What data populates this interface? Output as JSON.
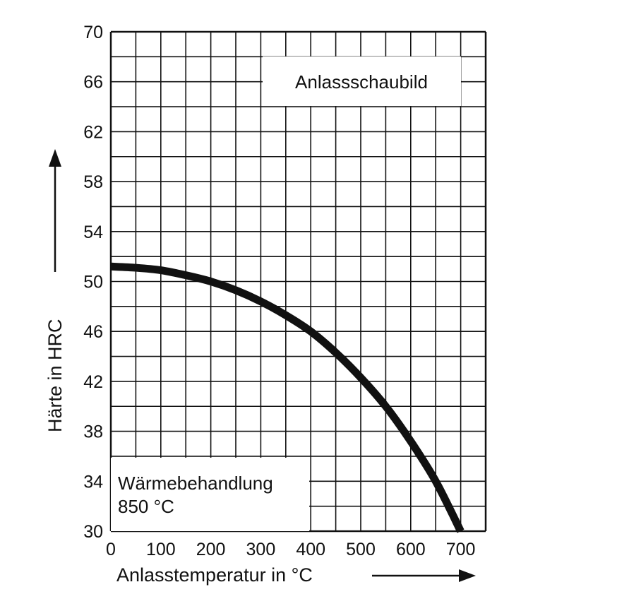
{
  "chart_data": {
    "type": "line",
    "title": "",
    "xlabel": "Anlasstemperatur in °C",
    "ylabel": "Härte in HRC",
    "xlim": [
      0,
      750
    ],
    "ylim": [
      30,
      70
    ],
    "x_ticks": [
      "0",
      "100",
      "200",
      "300",
      "400",
      "500",
      "600",
      "700"
    ],
    "y_ticks": [
      "70",
      "66",
      "62",
      "58",
      "54",
      "50",
      "46",
      "42",
      "38",
      "34",
      "30"
    ],
    "grid": true,
    "series": [
      {
        "x": [
          0,
          50,
          100,
          150,
          200,
          250,
          300,
          350,
          400,
          450,
          500,
          550,
          600,
          650,
          700
        ],
        "values": [
          51.2,
          51.1,
          50.9,
          50.5,
          50.0,
          49.3,
          48.4,
          47.3,
          46.0,
          44.3,
          42.3,
          40.0,
          37.2,
          34.0,
          30.0
        ]
      }
    ],
    "annotations": {
      "diagram_name": "Anlassschaubild",
      "treatment_line1": "Wärmebehandlung",
      "treatment_line2": "850 °C"
    },
    "line_color": "#111111"
  }
}
